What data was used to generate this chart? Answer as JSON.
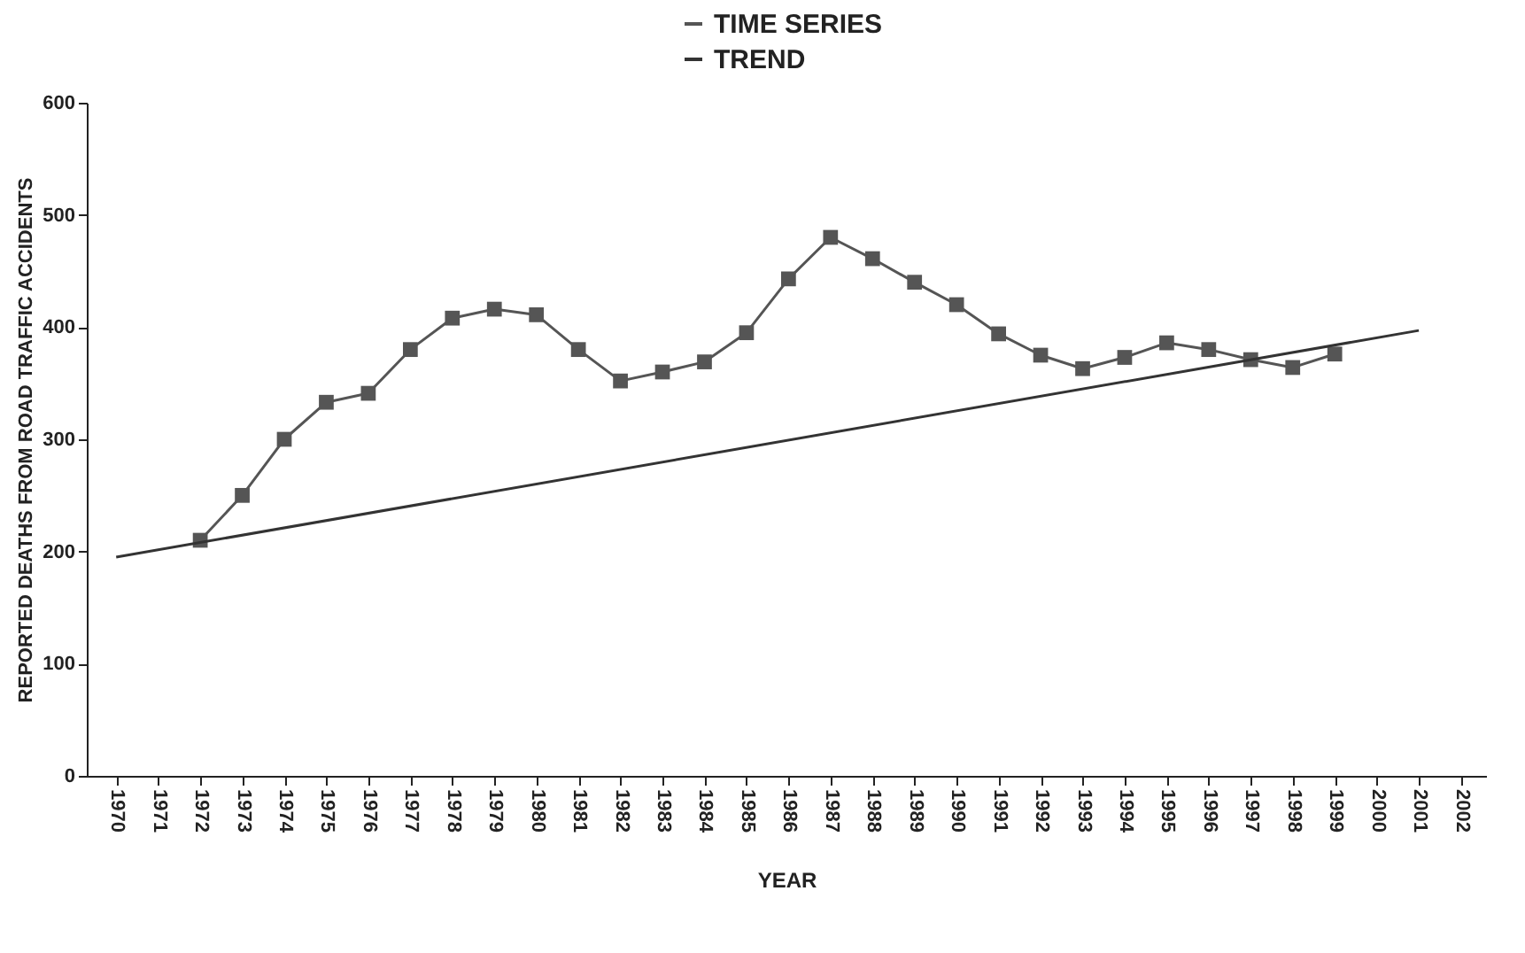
{
  "chart_data": {
    "type": "line",
    "xlabel": "YEAR",
    "ylabel": "REPORTED DEATHS FROM ROAD TRAFFIC ACCIDENTS",
    "xlim": [
      1969.3,
      2002.6
    ],
    "xticks": [
      1970,
      1971,
      1972,
      1973,
      1974,
      1975,
      1976,
      1977,
      1978,
      1979,
      1980,
      1981,
      1982,
      1983,
      1984,
      1985,
      1986,
      1987,
      1988,
      1989,
      1990,
      1991,
      1992,
      1993,
      1994,
      1995,
      1996,
      1997,
      1998,
      1999,
      2000,
      2001,
      2002
    ],
    "ylim": [
      0,
      600
    ],
    "yticks": [
      0,
      100,
      200,
      300,
      400,
      500,
      600
    ],
    "grid": false,
    "legend": "top",
    "series": [
      {
        "name": "TIME SERIES",
        "color": "#555555",
        "marker": "square",
        "x": [
          1972,
          1973,
          1974,
          1975,
          1976,
          1977,
          1978,
          1979,
          1980,
          1981,
          1982,
          1983,
          1984,
          1985,
          1986,
          1987,
          1988,
          1989,
          1990,
          1991,
          1992,
          1993,
          1994,
          1995,
          1996,
          1997,
          1998,
          1999
        ],
        "values": [
          210,
          250,
          300,
          333,
          341,
          380,
          408,
          416,
          411,
          380,
          352,
          360,
          369,
          395,
          443,
          480,
          461,
          440,
          420,
          394,
          375,
          363,
          373,
          386,
          380,
          371,
          364,
          376
        ]
      },
      {
        "name": "TREND",
        "color": "#333333",
        "marker": "none",
        "x": [
          1970,
          2001
        ],
        "values": [
          195,
          397
        ]
      }
    ]
  }
}
